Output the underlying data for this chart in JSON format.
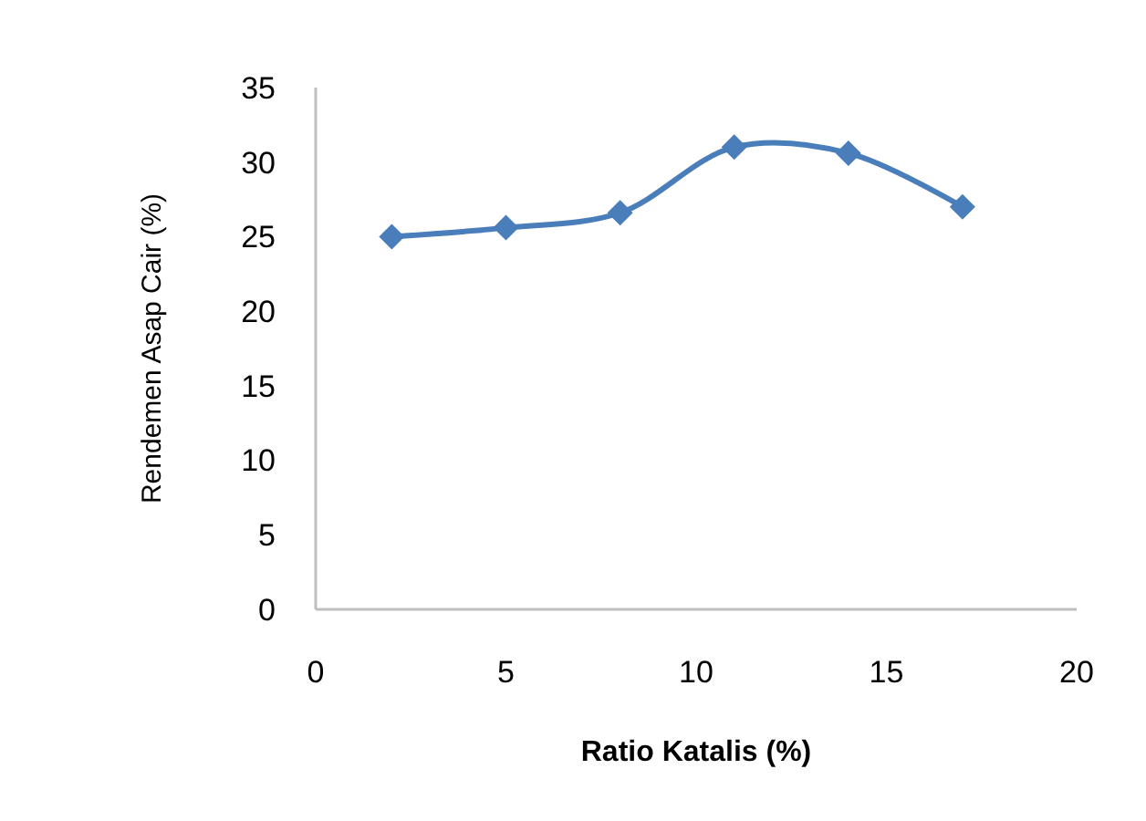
{
  "chart_data": {
    "type": "line",
    "xlabel": "Ratio Katalis (%)",
    "ylabel": "Rendemen Asap Cair (%)",
    "x": [
      2,
      5,
      8,
      11,
      14,
      17
    ],
    "series": [
      {
        "color": "#4a7ebb",
        "values": [
          25,
          25.6,
          26.6,
          31,
          30.6,
          27
        ]
      }
    ],
    "xlim": [
      0,
      20
    ],
    "xticks": [
      0,
      5,
      10,
      15,
      20
    ],
    "ylim": [
      0,
      35
    ],
    "yticks": [
      0,
      5,
      10,
      15,
      20,
      25,
      30,
      35
    ],
    "marker": "diamond",
    "line_style": "solid",
    "grid": false
  }
}
